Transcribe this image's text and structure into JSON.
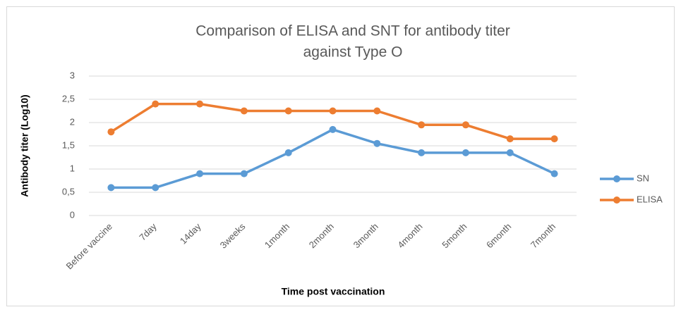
{
  "chart_data": {
    "type": "line",
    "title": [
      "Comparison of  ELISA and SNT for antibody titer",
      "against Type O"
    ],
    "xlabel": "Time  post vaccination",
    "ylabel": "Antibody titer (Log10)",
    "categories": [
      "Before vaccine",
      "7day",
      "14day",
      "3weeks",
      "1month",
      "2month",
      "3month",
      "4month",
      "5month",
      "6month",
      "7month"
    ],
    "series": [
      {
        "name": "SN",
        "color": "#5b9bd5",
        "values": [
          0.6,
          0.6,
          0.9,
          0.9,
          1.35,
          1.85,
          1.55,
          1.35,
          1.35,
          1.35,
          0.9
        ]
      },
      {
        "name": "ELISA",
        "color": "#ed7d31",
        "values": [
          1.8,
          2.4,
          2.4,
          2.25,
          2.25,
          2.25,
          2.25,
          1.95,
          1.95,
          1.65,
          1.65
        ]
      }
    ],
    "ylim": [
      0,
      3
    ],
    "yticks": [
      0,
      {
        "value": 0.5,
        "label": "0,5"
      },
      1,
      {
        "value": 1.5,
        "label": "1,5"
      },
      2,
      {
        "value": 2.5,
        "label": "2,5"
      },
      3
    ],
    "grid": true,
    "legend": "right"
  }
}
